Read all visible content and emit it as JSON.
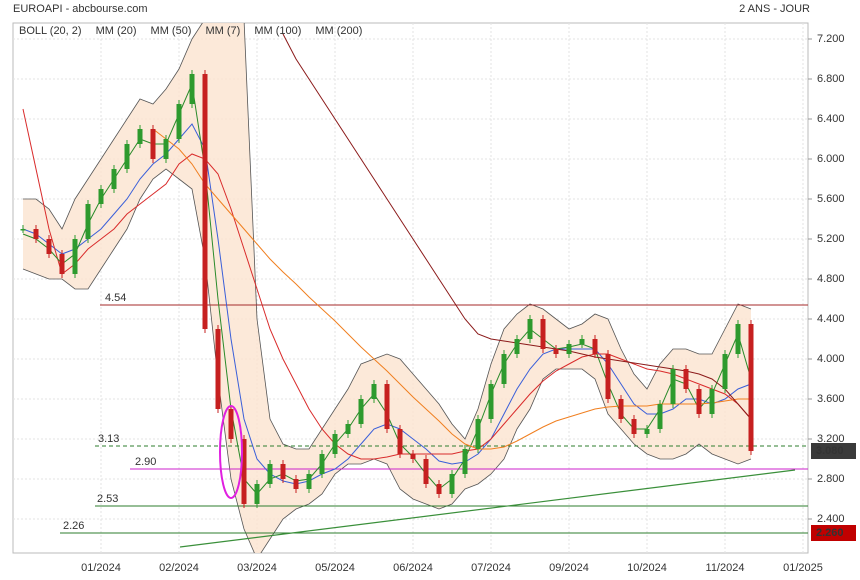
{
  "chart_data": {
    "type": "line",
    "title": "EUROAPI - abcbourse.com",
    "subtitle": "2 ANS - JOUR",
    "categories": [
      null,
      null,
      null,
      null,
      null,
      null,
      "01/2024",
      null,
      null,
      null,
      null,
      null,
      "02/2024",
      null,
      null,
      null,
      null,
      null,
      "03/2024",
      null,
      null,
      null,
      null,
      null,
      "05/2024",
      null,
      null,
      null,
      null,
      null,
      "06/2024",
      null,
      null,
      null,
      null,
      null,
      "07/2024",
      null,
      null,
      null,
      null,
      null,
      "09/2024",
      null,
      null,
      null,
      null,
      null,
      "10/2024",
      null,
      null,
      null,
      null,
      null,
      "11/2024",
      null,
      null,
      null,
      null,
      null,
      "01/2025"
    ],
    "price": {
      "up_color": "#2e9a2e",
      "down_color": "#c62020",
      "values": [
        5.3,
        5.2,
        5.05,
        4.85,
        5.2,
        5.55,
        5.7,
        5.9,
        6.15,
        6.3,
        6.0,
        6.2,
        6.55,
        6.85,
        4.3,
        3.5,
        3.2,
        2.55,
        2.75,
        2.95,
        2.8,
        2.7,
        2.85,
        3.05,
        3.25,
        3.35,
        3.6,
        3.75,
        3.3,
        3.05,
        3.0,
        2.75,
        2.65,
        2.85,
        3.1,
        3.4,
        3.75,
        4.05,
        4.2,
        4.4,
        4.1,
        4.05,
        4.15,
        4.2,
        4.05,
        3.6,
        3.4,
        3.25,
        3.3,
        3.55,
        3.9,
        3.7,
        3.45,
        3.7,
        4.05,
        4.35,
        3.08,
        null,
        null,
        null,
        null
      ]
    },
    "bollinger": {
      "name": "BOLL (20, 2)",
      "color": "#555555",
      "fill": "#fbe3cf",
      "upper": [
        5.6,
        5.6,
        5.5,
        5.3,
        5.6,
        5.8,
        6.0,
        6.2,
        6.4,
        6.6,
        6.55,
        6.7,
        6.9,
        7.2,
        7.4,
        7.4,
        7.4,
        7.4,
        4.4,
        3.4,
        3.15,
        3.1,
        3.1,
        3.3,
        3.5,
        3.7,
        3.95,
        4.0,
        4.05,
        4.0,
        3.85,
        3.7,
        3.55,
        3.35,
        3.2,
        3.5,
        3.95,
        4.3,
        4.45,
        4.55,
        4.5,
        4.4,
        4.3,
        4.35,
        4.45,
        4.4,
        4.1,
        3.85,
        3.7,
        3.95,
        4.1,
        4.1,
        4.05,
        4.05,
        4.3,
        4.55,
        4.5,
        null,
        null,
        null,
        null
      ],
      "lower": [
        4.9,
        4.85,
        4.8,
        4.8,
        4.7,
        4.7,
        4.9,
        5.1,
        5.3,
        5.6,
        5.8,
        5.9,
        5.8,
        5.7,
        5.0,
        3.8,
        2.8,
        2.3,
        2.0,
        2.2,
        2.4,
        2.5,
        2.55,
        2.65,
        2.85,
        2.95,
        2.95,
        3.0,
        2.95,
        2.7,
        2.6,
        2.55,
        2.5,
        2.55,
        2.7,
        2.75,
        2.85,
        3.0,
        3.3,
        3.5,
        3.8,
        3.9,
        3.9,
        3.9,
        3.8,
        3.45,
        3.3,
        3.15,
        3.05,
        3.0,
        3.0,
        3.05,
        3.15,
        3.05,
        3.0,
        2.95,
        3.0,
        null,
        null,
        null,
        null
      ]
    },
    "series": [
      {
        "name": "MM (20)",
        "color": "#3a5fd9",
        "values": [
          5.3,
          5.25,
          5.15,
          5.05,
          5.1,
          5.2,
          5.3,
          5.45,
          5.6,
          5.8,
          5.95,
          6.05,
          6.2,
          6.35,
          6.1,
          5.2,
          4.2,
          3.4,
          3.0,
          2.85,
          2.78,
          2.75,
          2.78,
          2.85,
          2.9,
          3.0,
          3.15,
          3.3,
          3.35,
          3.3,
          3.2,
          3.1,
          2.98,
          2.95,
          2.97,
          3.05,
          3.2,
          3.45,
          3.7,
          3.9,
          4.05,
          4.1,
          4.1,
          4.1,
          4.1,
          3.95,
          3.75,
          3.55,
          3.45,
          3.45,
          3.5,
          3.6,
          3.6,
          3.55,
          3.6,
          3.7,
          3.75,
          null,
          null,
          null,
          null
        ]
      },
      {
        "name": "MM (50)",
        "color": "#d92b2b",
        "values": [
          6.5,
          5.9,
          5.3,
          4.85,
          4.95,
          5.1,
          5.2,
          5.3,
          5.45,
          5.55,
          5.65,
          5.75,
          5.95,
          6.05,
          6.0,
          5.85,
          5.5,
          5.1,
          4.7,
          4.3,
          4.0,
          3.75,
          3.5,
          3.3,
          3.15,
          3.05,
          3.0,
          3.0,
          3.02,
          3.05,
          3.05,
          3.05,
          3.05,
          3.05,
          3.08,
          3.1,
          3.2,
          3.35,
          3.5,
          3.65,
          3.78,
          3.88,
          3.95,
          4.02,
          4.05,
          4.05,
          4.0,
          3.95,
          3.9,
          3.88,
          3.85,
          3.8,
          3.75,
          3.7,
          3.65,
          3.55,
          3.4,
          null,
          null,
          null,
          null
        ]
      },
      {
        "name": "MM (7)",
        "color": "#2a8a2a",
        "values": [
          5.25,
          5.2,
          5.1,
          4.95,
          5.05,
          5.35,
          5.6,
          5.8,
          6.0,
          6.2,
          6.15,
          6.15,
          6.45,
          6.75,
          5.9,
          4.6,
          3.5,
          2.8,
          2.65,
          2.8,
          2.85,
          2.78,
          2.8,
          2.95,
          3.15,
          3.3,
          3.5,
          3.65,
          3.45,
          3.15,
          3.02,
          2.85,
          2.7,
          2.8,
          3.0,
          3.3,
          3.65,
          3.95,
          4.15,
          4.3,
          4.2,
          4.1,
          4.12,
          4.15,
          4.1,
          3.75,
          3.45,
          3.3,
          3.3,
          3.5,
          3.8,
          3.75,
          3.5,
          3.65,
          3.95,
          4.25,
          3.8,
          null,
          null,
          null,
          null
        ]
      },
      {
        "name": "MM (100)",
        "color": "#f07f20",
        "values": [
          null,
          null,
          null,
          null,
          null,
          null,
          null,
          null,
          null,
          null,
          6.3,
          6.2,
          6.1,
          5.95,
          5.75,
          5.6,
          5.45,
          5.3,
          5.15,
          5.0,
          4.87,
          4.75,
          4.62,
          4.5,
          4.38,
          4.25,
          4.12,
          4.0,
          3.88,
          3.75,
          3.62,
          3.5,
          3.38,
          3.25,
          3.15,
          3.1,
          3.1,
          3.12,
          3.18,
          3.25,
          3.32,
          3.38,
          3.42,
          3.46,
          3.5,
          3.52,
          3.53,
          3.53,
          3.53,
          3.55,
          3.55,
          3.55,
          3.55,
          3.56,
          3.58,
          3.6,
          3.6,
          null,
          null,
          null,
          null
        ]
      },
      {
        "name": "MM (200)",
        "color": "#8b1a1a",
        "values": [
          null,
          null,
          null,
          null,
          null,
          null,
          null,
          null,
          null,
          null,
          null,
          null,
          null,
          null,
          null,
          null,
          null,
          null,
          null,
          null,
          7.25,
          7.0,
          6.8,
          6.6,
          6.4,
          6.2,
          6.0,
          5.8,
          5.6,
          5.4,
          5.2,
          5.0,
          4.8,
          4.6,
          4.4,
          4.25,
          4.2,
          4.18,
          4.16,
          4.14,
          4.12,
          4.1,
          4.08,
          4.05,
          4.02,
          4.0,
          3.98,
          3.96,
          3.94,
          3.92,
          3.9,
          3.88,
          3.85,
          3.8,
          3.7,
          3.55,
          3.4,
          null,
          null,
          null,
          null
        ]
      }
    ],
    "levels": [
      {
        "value": 4.54,
        "label": "4.54",
        "color": "#a52a2a",
        "dashed": false
      },
      {
        "value": 3.13,
        "label": "3.13",
        "color": "#2e7d2e",
        "dashed": true
      },
      {
        "value": 2.9,
        "label": "2.90",
        "color": "#cc22cc",
        "dashed": false
      },
      {
        "value": 2.53,
        "label": "2.53",
        "color": "#2e7d2e",
        "dashed": false
      },
      {
        "value": 2.26,
        "label": "2.26",
        "color": "#2e7d2e",
        "dashed": false
      }
    ],
    "trendline": {
      "color": "#3a8f3a",
      "values": [
        2.12,
        2.89
      ]
    },
    "price_tags": [
      {
        "value": 3.08,
        "label": "3.080",
        "color": "#3a3a3a"
      },
      {
        "value": 2.26,
        "label": "2.260",
        "color": "#c00000"
      }
    ],
    "ylim": [
      2.06,
      7.36
    ],
    "yticks": [
      {
        "value": 2.4,
        "label": "2.400"
      },
      {
        "value": 2.8,
        "label": "2.800"
      },
      {
        "value": 3.2,
        "label": "3.200"
      },
      {
        "value": 3.6,
        "label": "3.600"
      },
      {
        "value": 4.0,
        "label": "4.000"
      },
      {
        "value": 4.4,
        "label": "4.400"
      },
      {
        "value": 4.8,
        "label": "4.800"
      },
      {
        "value": 5.2,
        "label": "5.200"
      },
      {
        "value": 5.6,
        "label": "5.600"
      },
      {
        "value": 6.0,
        "label": "6.000"
      },
      {
        "value": 6.4,
        "label": "6.400"
      },
      {
        "value": 6.8,
        "label": "6.800"
      },
      {
        "value": 7.2,
        "label": "7.200"
      }
    ],
    "grid": true
  }
}
